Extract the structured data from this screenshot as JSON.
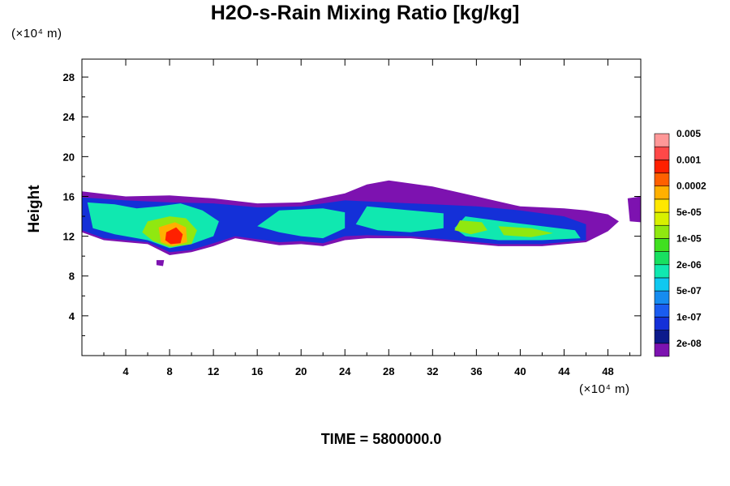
{
  "chart_data": {
    "type": "heatmap",
    "title": "H2O-s-Rain Mixing Ratio [kg/kg]",
    "x_unit": "(×10⁴ m)",
    "y_unit": "(×10⁴ m)",
    "ylabel": "Height",
    "xlabel": "",
    "footer": "TIME = 5800000.0",
    "xlim": [
      0,
      51
    ],
    "ylim": [
      0,
      29.8
    ],
    "x_ticks": [
      "4",
      "8",
      "12",
      "16",
      "20",
      "24",
      "28",
      "32",
      "36",
      "40",
      "44",
      "48"
    ],
    "y_ticks": [
      "4",
      "8",
      "12",
      "16",
      "20",
      "24",
      "28"
    ],
    "colorbar": {
      "colors": [
        "#7d12b0",
        "#0c1a8c",
        "#1430d8",
        "#1a5cf0",
        "#168cf0",
        "#10c8f0",
        "#10e8b0",
        "#18e060",
        "#40e020",
        "#90e810",
        "#d8f000",
        "#ffe800",
        "#ffb000",
        "#ff6000",
        "#ff2000",
        "#ff4848",
        "#ff9898"
      ],
      "labels": [
        "2e-08",
        "1e-07",
        "5e-07",
        "2e-06",
        "1e-05",
        "5e-05",
        "0.0002",
        "0.001",
        "0.005"
      ]
    },
    "field_note_levels": [
      "2e-08",
      "1e-07",
      "5e-07",
      "2e-06",
      "1e-05",
      "5e-05",
      "0.0002",
      "0.001",
      "0.005"
    ],
    "features": [
      {
        "level": 0,
        "points": [
          [
            0,
            16.5
          ],
          [
            4,
            16.0
          ],
          [
            8,
            16.1
          ],
          [
            12,
            15.8
          ],
          [
            16,
            15.3
          ],
          [
            20,
            15.4
          ],
          [
            24,
            16.3
          ],
          [
            26,
            17.2
          ],
          [
            28,
            17.6
          ],
          [
            32,
            17.0
          ],
          [
            36,
            16.0
          ],
          [
            40,
            15.0
          ],
          [
            44,
            14.8
          ],
          [
            46,
            14.6
          ],
          [
            48,
            14.2
          ],
          [
            49,
            13.5
          ],
          [
            48,
            12.5
          ],
          [
            46,
            11.4
          ],
          [
            42,
            11.0
          ],
          [
            38,
            11.0
          ],
          [
            34,
            11.4
          ],
          [
            30,
            11.8
          ],
          [
            26,
            11.8
          ],
          [
            24,
            11.6
          ],
          [
            22,
            11.0
          ],
          [
            20,
            11.2
          ],
          [
            18,
            11.1
          ],
          [
            14,
            11.8
          ],
          [
            12,
            11.0
          ],
          [
            10,
            10.4
          ],
          [
            8,
            10.1
          ],
          [
            6,
            11.2
          ],
          [
            4,
            11.4
          ],
          [
            2,
            11.6
          ],
          [
            0,
            12.4
          ]
        ]
      },
      {
        "level": 0,
        "points": [
          [
            49.8,
            15.8
          ],
          [
            51,
            16.0
          ],
          [
            51,
            13.4
          ],
          [
            50,
            13.5
          ]
        ]
      },
      {
        "level": 0,
        "points": [
          [
            6.8,
            9.6
          ],
          [
            7.5,
            9.6
          ],
          [
            7.4,
            9.0
          ],
          [
            6.8,
            9.1
          ]
        ]
      },
      {
        "level": 2,
        "points": [
          [
            0,
            15.9
          ],
          [
            4,
            15.6
          ],
          [
            8,
            15.4
          ],
          [
            12,
            15.3
          ],
          [
            16,
            14.9
          ],
          [
            20,
            15.0
          ],
          [
            24,
            15.6
          ],
          [
            28,
            15.4
          ],
          [
            32,
            15.2
          ],
          [
            36,
            15.0
          ],
          [
            40,
            14.6
          ],
          [
            44,
            14.0
          ],
          [
            46,
            13.2
          ],
          [
            46,
            11.6
          ],
          [
            42,
            11.2
          ],
          [
            38,
            11.2
          ],
          [
            34,
            11.6
          ],
          [
            30,
            12.0
          ],
          [
            26,
            12.1
          ],
          [
            24,
            12.0
          ],
          [
            22,
            11.3
          ],
          [
            20,
            11.5
          ],
          [
            18,
            11.4
          ],
          [
            14,
            12.0
          ],
          [
            12,
            11.3
          ],
          [
            10,
            10.6
          ],
          [
            8,
            10.4
          ],
          [
            6,
            11.4
          ],
          [
            4,
            11.6
          ],
          [
            2,
            11.8
          ],
          [
            0,
            12.6
          ]
        ]
      },
      {
        "level": 6,
        "points": [
          [
            0.5,
            15.4
          ],
          [
            3,
            15.2
          ],
          [
            5,
            14.8
          ],
          [
            7,
            15.0
          ],
          [
            9,
            15.3
          ],
          [
            11,
            14.6
          ],
          [
            12.5,
            13.5
          ],
          [
            12,
            12.0
          ],
          [
            10,
            11.2
          ],
          [
            8,
            10.8
          ],
          [
            6,
            11.6
          ],
          [
            3,
            12.2
          ],
          [
            1,
            12.8
          ]
        ]
      },
      {
        "level": 6,
        "points": [
          [
            18,
            14.6
          ],
          [
            22,
            14.8
          ],
          [
            24,
            14.4
          ],
          [
            24,
            12.8
          ],
          [
            22,
            11.8
          ],
          [
            20,
            12.0
          ],
          [
            18,
            12.4
          ],
          [
            16,
            13.0
          ]
        ]
      },
      {
        "level": 6,
        "points": [
          [
            26,
            15.0
          ],
          [
            30,
            14.6
          ],
          [
            33,
            14.3
          ],
          [
            33,
            12.8
          ],
          [
            30,
            12.4
          ],
          [
            27,
            12.6
          ],
          [
            25,
            13.2
          ]
        ]
      },
      {
        "level": 6,
        "points": [
          [
            35,
            14.0
          ],
          [
            39,
            13.4
          ],
          [
            42,
            13.0
          ],
          [
            45,
            12.6
          ],
          [
            45.5,
            11.8
          ],
          [
            42,
            11.6
          ],
          [
            38,
            11.6
          ],
          [
            35,
            12.0
          ],
          [
            34,
            12.8
          ]
        ]
      },
      {
        "level": 9,
        "points": [
          [
            6,
            13.5
          ],
          [
            8,
            14.0
          ],
          [
            9.5,
            13.8
          ],
          [
            10.5,
            12.6
          ],
          [
            10,
            11.2
          ],
          [
            8,
            10.9
          ],
          [
            6.5,
            11.5
          ],
          [
            5.5,
            12.4
          ]
        ]
      },
      {
        "level": 9,
        "points": [
          [
            34.5,
            13.6
          ],
          [
            36.5,
            13.4
          ],
          [
            37,
            12.6
          ],
          [
            35.5,
            12.2
          ],
          [
            34,
            12.6
          ]
        ]
      },
      {
        "level": 9,
        "points": [
          [
            38,
            13.0
          ],
          [
            41,
            12.8
          ],
          [
            43,
            12.3
          ],
          [
            41,
            11.9
          ],
          [
            38.5,
            12.1
          ]
        ]
      },
      {
        "level": 12,
        "points": [
          [
            7,
            12.9
          ],
          [
            8.5,
            13.4
          ],
          [
            9.5,
            12.9
          ],
          [
            9.6,
            11.4
          ],
          [
            8.3,
            11.0
          ],
          [
            7.2,
            11.4
          ]
        ]
      },
      {
        "level": 14,
        "points": [
          [
            7.7,
            12.4
          ],
          [
            8.6,
            12.9
          ],
          [
            9.2,
            12.2
          ],
          [
            9.0,
            11.3
          ],
          [
            8.1,
            11.2
          ],
          [
            7.6,
            11.6
          ]
        ]
      }
    ]
  }
}
